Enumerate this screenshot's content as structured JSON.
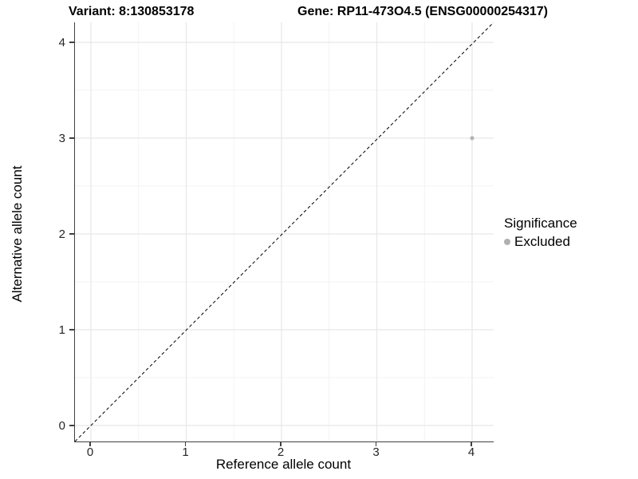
{
  "chart_data": {
    "type": "scatter",
    "titles": {
      "variant": "Variant: 8:130853178",
      "gene": "Gene: RP11-473O4.5 (ENSG00000254317)"
    },
    "xlabel": "Reference allele count",
    "ylabel": "Alternative allele count",
    "x_ticks": [
      0,
      1,
      2,
      3,
      4
    ],
    "y_ticks": [
      0,
      1,
      2,
      3,
      4
    ],
    "minor_ticks": [
      0.5,
      1.5,
      2.5,
      3.5
    ],
    "xlim": [
      -0.17,
      4.23
    ],
    "ylim": [
      -0.17,
      4.21
    ],
    "grid": "major and minor, light gray on white",
    "series": [
      {
        "name": "Excluded",
        "color": "#b5b5b5",
        "points": [
          {
            "x": 4,
            "y": 3
          }
        ]
      }
    ],
    "reference_line": {
      "kind": "y=x diagonal",
      "style": "dashed",
      "color": "#000000"
    },
    "legend": {
      "position": "right",
      "title": "Significance",
      "items": [
        {
          "label": "Excluded",
          "color": "#b0b0b0",
          "marker": "circle"
        }
      ]
    }
  },
  "colors": {
    "grid_major": "#e7e7e7",
    "grid_minor": "#f3f3f3",
    "axis_line": "#404040",
    "tick_text": "#262626",
    "point": "#b5b5b5"
  }
}
